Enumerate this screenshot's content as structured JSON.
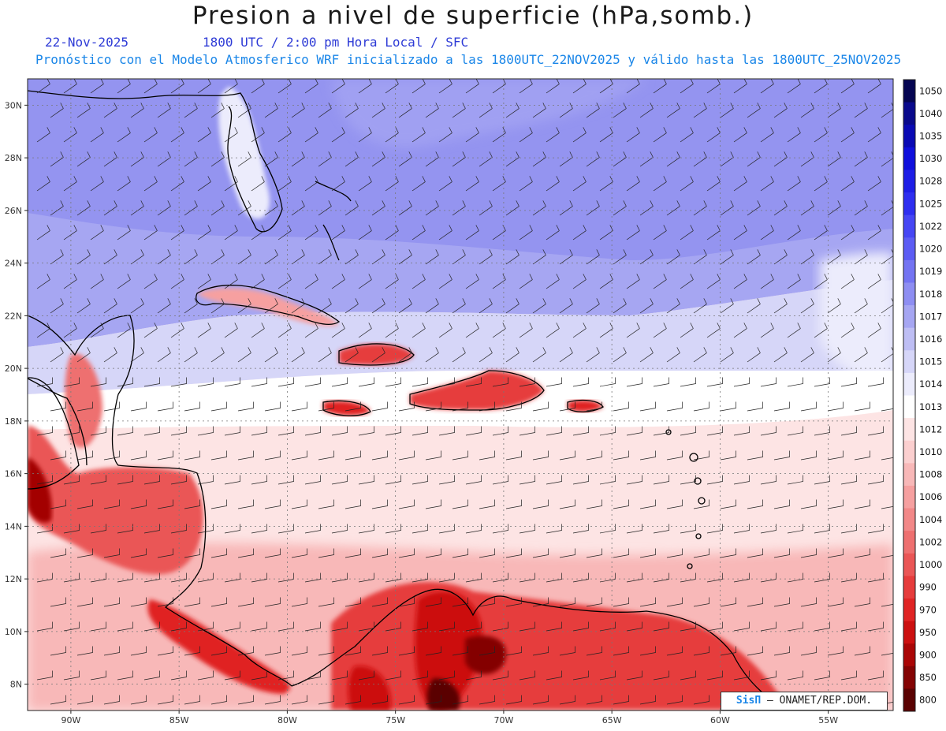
{
  "header": {
    "title": "Presion a nivel de superficie (hPa,somb.)",
    "date": "22-Nov-2025",
    "time": "1800 UTC / 2:00 pm Hora Local / SFC",
    "description": "Pronóstico con el Modelo Atmosferico WRF inicializado a las 1800UTC_22NOV2025 y válido hasta las  1800UTC_25NOV2025"
  },
  "map": {
    "lat_range": [
      7,
      31
    ],
    "lon_range": [
      -92,
      -52
    ],
    "lat_ticks": [
      "30N",
      "28N",
      "26N",
      "24N",
      "22N",
      "20N",
      "18N",
      "16N",
      "14N",
      "12N",
      "10N",
      "8N"
    ],
    "lon_ticks": [
      "90W",
      "85W",
      "80W",
      "75W",
      "70W",
      "65W",
      "60W",
      "55W"
    ],
    "grid": true
  },
  "colorbar": {
    "levels": [
      "1050",
      "1040",
      "1035",
      "1030",
      "1028",
      "1025",
      "1022",
      "1020",
      "1019",
      "1018",
      "1017",
      "1016",
      "1015",
      "1014",
      "1013",
      "1012",
      "1010",
      "1008",
      "1006",
      "1004",
      "1002",
      "1000",
      "990",
      "970",
      "950",
      "900",
      "850",
      "800"
    ],
    "colors": [
      "#050552",
      "#0a0a8c",
      "#0a0ab4",
      "#0f0fdc",
      "#1e1ee6",
      "#2e2ef0",
      "#4646f4",
      "#5c5cf4",
      "#7474f2",
      "#8e8ef2",
      "#a6a6f2",
      "#bebef4",
      "#d6d6f8",
      "#ececfc",
      "#ffffff",
      "#fde4e4",
      "#fbcfcf",
      "#f8b8b8",
      "#f6a0a0",
      "#f28888",
      "#ee7070",
      "#ea5656",
      "#e63c3c",
      "#e02424",
      "#cc1010",
      "#aa0606",
      "#840404",
      "#5a0202"
    ]
  },
  "credit": {
    "brand": "SisΠ",
    "text": "– ONAMET/REP.DOM."
  }
}
